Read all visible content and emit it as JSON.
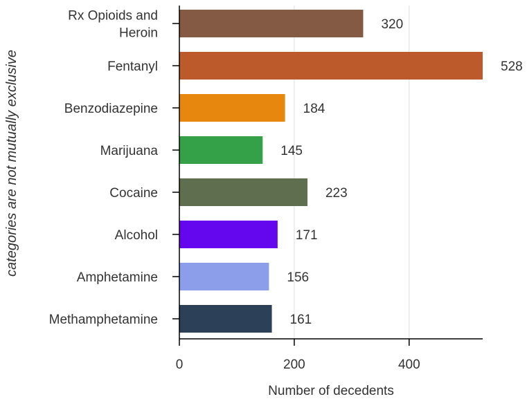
{
  "chart_data": {
    "type": "bar",
    "orientation": "horizontal",
    "categories": [
      "Rx Opioids and Heroin",
      "Fentanyl",
      "Benzodiazepine",
      "Marijuana",
      "Cocaine",
      "Alcohol",
      "Amphetamine",
      "Methamphetamine"
    ],
    "category_lines": [
      [
        "Rx Opioids and",
        "Heroin"
      ],
      [
        "Fentanyl"
      ],
      [
        "Benzodiazepine"
      ],
      [
        "Marijuana"
      ],
      [
        "Cocaine"
      ],
      [
        "Alcohol"
      ],
      [
        "Amphetamine"
      ],
      [
        "Methamphetamine"
      ]
    ],
    "values": [
      320,
      528,
      184,
      145,
      223,
      171,
      156,
      161
    ],
    "value_labels": [
      "320",
      "528",
      "184",
      "145",
      "223",
      "171",
      "156",
      "161"
    ],
    "colors": [
      "#855a45",
      "#bd5a2c",
      "#e8870e",
      "#34a149",
      "#5f6e4f",
      "#6406ee",
      "#8c9eea",
      "#2c4057"
    ],
    "xlabel": "Number of decedents",
    "ylabel": "categories are not mutually exclusive",
    "xlim": [
      0,
      528
    ],
    "xticks": [
      0,
      200,
      400
    ],
    "xtick_labels": [
      "0",
      "200",
      "400"
    ],
    "grid": "vertical",
    "legend": "none"
  }
}
